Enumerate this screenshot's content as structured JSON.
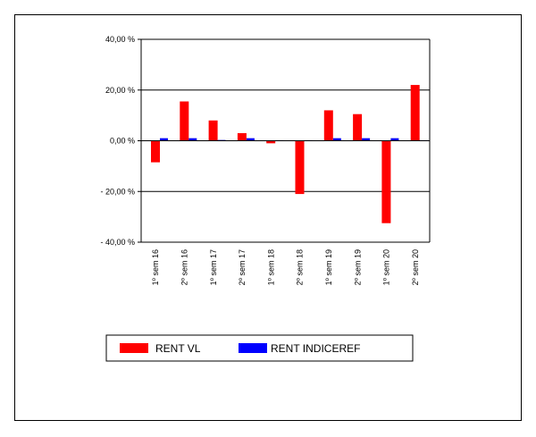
{
  "chart_data": {
    "type": "bar",
    "categories": [
      "1º sem 16",
      "2º sem 16",
      "1º sem 17",
      "2º sem 17",
      "1º sem 18",
      "2º sem 18",
      "1º sem 19",
      "2º sem 19",
      "1º sem 20",
      "2º sem 20"
    ],
    "series": [
      {
        "name": "RENT VL",
        "color": "#ff0000",
        "values": [
          -8.5,
          15.5,
          8.0,
          3.0,
          -1.0,
          -21.0,
          12.0,
          10.5,
          -32.5,
          22.0
        ]
      },
      {
        "name": "RENT INDICEREF",
        "color": "#0000ff",
        "values": [
          1.0,
          1.0,
          0.3,
          1.0,
          0.2,
          0.2,
          1.0,
          1.0,
          1.0,
          0.2
        ]
      }
    ],
    "ylim": [
      -40,
      40
    ],
    "yticks": [
      40,
      20,
      0,
      -20,
      -40
    ],
    "ytick_labels": [
      "40,00 %",
      "20,00 %",
      "0,00 %",
      "- 20,00 %",
      "- 40,00 %"
    ],
    "grid": true,
    "legend_position": "bottom"
  }
}
